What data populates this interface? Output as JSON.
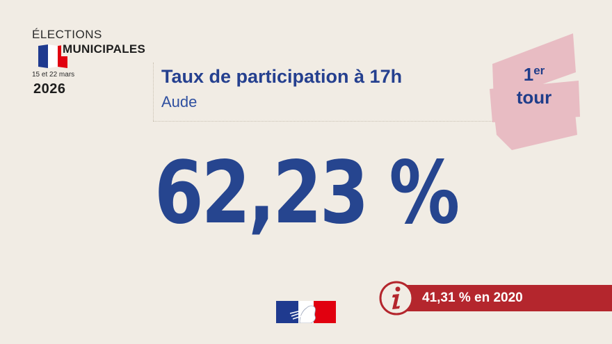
{
  "logo": {
    "line1": "ÉLECTIONS",
    "line2": "MUNICIPALES",
    "dates": "15 et 22 mars",
    "year": "2026"
  },
  "header": {
    "title": "Taux de participation à 17h",
    "subtitle": "Aude"
  },
  "badge": {
    "number": "1",
    "suffix": "er",
    "word": "tour"
  },
  "main_value": "62,23 %",
  "info": {
    "icon": "info-icon",
    "text": "41,31 % en 2020"
  },
  "colors": {
    "background": "#f1ece4",
    "primary_blue": "#25408f",
    "badge_pink": "#e8bcc3",
    "banner_red": "#b4262d",
    "flag_blue": "#1f3a8f",
    "flag_red": "#e1000f"
  }
}
